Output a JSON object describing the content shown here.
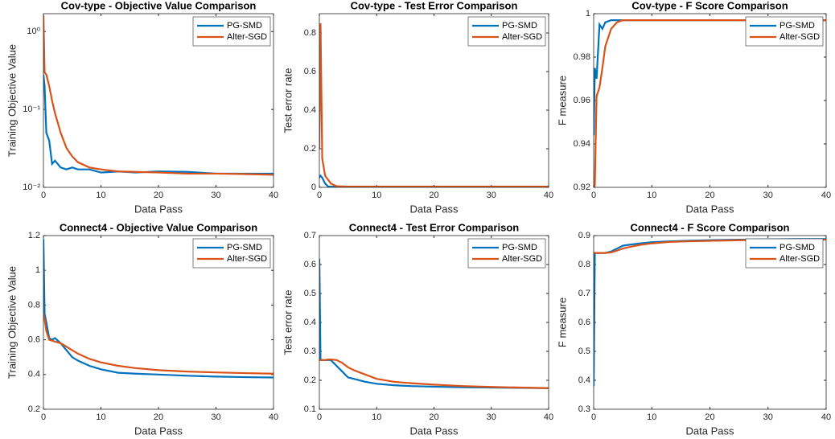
{
  "chart_data": [
    {
      "type": "line",
      "title": "Cov-type - Objective Value Comparison",
      "xlabel": "Data Pass",
      "ylabel": "Training Objective Value",
      "log_y": true,
      "legend": "northeast",
      "x": [
        0,
        0.2,
        0.5,
        1,
        1.5,
        2,
        3,
        4,
        5,
        6,
        8,
        10,
        13,
        16,
        20,
        25,
        30,
        35,
        40
      ],
      "series": [
        {
          "name": "PG-SMD",
          "color": "#0072bd",
          "values": [
            0.28,
            0.2,
            0.05,
            0.04,
            0.02,
            0.022,
            0.018,
            0.017,
            0.018,
            0.017,
            0.017,
            0.0155,
            0.016,
            0.0155,
            0.016,
            0.0158,
            0.015,
            0.015,
            0.015
          ]
        },
        {
          "name": "Alter-SGD",
          "color": "#d95319",
          "values": [
            1.6,
            0.3,
            0.28,
            0.2,
            0.13,
            0.09,
            0.05,
            0.032,
            0.025,
            0.021,
            0.018,
            0.017,
            0.016,
            0.0158,
            0.0155,
            0.015,
            0.015,
            0.0148,
            0.0145
          ]
        }
      ],
      "xlim": [
        0,
        40
      ],
      "xticks": [
        0,
        10,
        20,
        30,
        40
      ],
      "ylim": [
        0.01,
        1.7
      ],
      "yticks": [
        {
          "value": 0.01,
          "label": "10⁻²"
        },
        {
          "value": 0.1,
          "label": "10⁻¹"
        },
        {
          "value": 1,
          "label": "10⁰"
        }
      ]
    },
    {
      "type": "line",
      "title": "Cov-type - Test Error Comparison",
      "xlabel": "Data Pass",
      "ylabel": "Test error rate",
      "legend": "northeast",
      "x": [
        0,
        0.2,
        0.5,
        1,
        1.5,
        2,
        3,
        4,
        5,
        6,
        8,
        10,
        13,
        16,
        20,
        25,
        30,
        35,
        40
      ],
      "series": [
        {
          "name": "PG-SMD",
          "color": "#0072bd",
          "values": [
            0.05,
            0.06,
            0.05,
            0.02,
            0.005,
            0.003,
            0.003,
            0.003,
            0.003,
            0.003,
            0.003,
            0.003,
            0.003,
            0.003,
            0.003,
            0.003,
            0.003,
            0.003,
            0.003
          ]
        },
        {
          "name": "Alter-SGD",
          "color": "#d95319",
          "values": [
            0.2,
            0.85,
            0.15,
            0.06,
            0.04,
            0.02,
            0.006,
            0.005,
            0.004,
            0.004,
            0.004,
            0.004,
            0.004,
            0.004,
            0.004,
            0.004,
            0.004,
            0.004,
            0.004
          ]
        }
      ],
      "xlim": [
        0,
        40
      ],
      "xticks": [
        0,
        10,
        20,
        30,
        40
      ],
      "ylim": [
        0,
        0.9
      ],
      "yticks": [
        0,
        0.2,
        0.4,
        0.6,
        0.8
      ]
    },
    {
      "type": "line",
      "title": "Cov-type - F Score Comparison",
      "xlabel": "Data Pass",
      "ylabel": "F measure",
      "legend": "northeast",
      "x": [
        0,
        0.2,
        0.5,
        1,
        1.5,
        2,
        3,
        4,
        5,
        6,
        8,
        10,
        13,
        16,
        20,
        25,
        30,
        35,
        40
      ],
      "series": [
        {
          "name": "PG-SMD",
          "color": "#0072bd",
          "values": [
            0.944,
            0.975,
            0.97,
            0.995,
            0.993,
            0.996,
            0.997,
            0.997,
            0.997,
            0.997,
            0.997,
            0.997,
            0.997,
            0.997,
            0.997,
            0.997,
            0.997,
            0.997,
            0.997
          ]
        },
        {
          "name": "Alter-SGD",
          "color": "#d95319",
          "values": [
            0.92,
            0.921,
            0.962,
            0.966,
            0.975,
            0.985,
            0.993,
            0.996,
            0.997,
            0.997,
            0.997,
            0.997,
            0.997,
            0.997,
            0.997,
            0.997,
            0.997,
            0.997,
            0.997
          ]
        }
      ],
      "xlim": [
        0,
        40
      ],
      "xticks": [
        0,
        10,
        20,
        30,
        40
      ],
      "ylim": [
        0.92,
        1
      ],
      "yticks": [
        0.92,
        0.94,
        0.96,
        0.98,
        1
      ]
    },
    {
      "type": "line",
      "title": "Connect4 - Objective Value Comparison",
      "xlabel": "Data Pass",
      "ylabel": "Training Objective Value",
      "legend": "northeast",
      "x": [
        0,
        0.2,
        0.5,
        1,
        1.5,
        2,
        3,
        4,
        5,
        6,
        8,
        10,
        13,
        16,
        20,
        25,
        30,
        35,
        40
      ],
      "series": [
        {
          "name": "PG-SMD",
          "color": "#0072bd",
          "values": [
            1.18,
            0.75,
            0.7,
            0.61,
            0.6,
            0.61,
            0.58,
            0.54,
            0.5,
            0.48,
            0.45,
            0.43,
            0.41,
            0.405,
            0.4,
            0.393,
            0.388,
            0.385,
            0.383
          ]
        },
        {
          "name": "Alter-SGD",
          "color": "#d95319",
          "values": [
            0.75,
            0.72,
            0.65,
            0.6,
            0.595,
            0.59,
            0.58,
            0.56,
            0.54,
            0.52,
            0.49,
            0.47,
            0.45,
            0.437,
            0.425,
            0.417,
            0.412,
            0.408,
            0.405
          ]
        }
      ],
      "xlim": [
        0,
        40
      ],
      "xticks": [
        0,
        10,
        20,
        30,
        40
      ],
      "ylim": [
        0.2,
        1.2
      ],
      "yticks": [
        0.2,
        0.4,
        0.6,
        0.8,
        1,
        1.2
      ]
    },
    {
      "type": "line",
      "title": "Connect4 - Test Error Comparison",
      "xlabel": "Data Pass",
      "ylabel": "Test error rate",
      "legend": "northeast",
      "x": [
        0,
        0.2,
        0.5,
        1,
        1.5,
        2,
        3,
        4,
        5,
        6,
        8,
        10,
        13,
        16,
        20,
        25,
        30,
        35,
        40
      ],
      "series": [
        {
          "name": "PG-SMD",
          "color": "#0072bd",
          "values": [
            0.62,
            0.27,
            0.27,
            0.27,
            0.27,
            0.27,
            0.25,
            0.23,
            0.21,
            0.205,
            0.195,
            0.188,
            0.183,
            0.18,
            0.178,
            0.176,
            0.175,
            0.174,
            0.173
          ]
        },
        {
          "name": "Alter-SGD",
          "color": "#d95319",
          "values": [
            0.27,
            0.27,
            0.27,
            0.27,
            0.272,
            0.272,
            0.27,
            0.26,
            0.245,
            0.235,
            0.22,
            0.205,
            0.195,
            0.19,
            0.185,
            0.18,
            0.177,
            0.175,
            0.173
          ]
        }
      ],
      "xlim": [
        0,
        40
      ],
      "xticks": [
        0,
        10,
        20,
        30,
        40
      ],
      "ylim": [
        0.1,
        0.7
      ],
      "yticks": [
        0.1,
        0.2,
        0.3,
        0.4,
        0.5,
        0.6,
        0.7
      ]
    },
    {
      "type": "line",
      "title": "Connect4 - F Score Comparison",
      "xlabel": "Data Pass",
      "ylabel": "F measure",
      "legend": "northeast",
      "x": [
        0,
        0.2,
        0.5,
        1,
        1.5,
        2,
        3,
        4,
        5,
        6,
        8,
        10,
        13,
        16,
        20,
        25,
        30,
        35,
        40
      ],
      "series": [
        {
          "name": "PG-SMD",
          "color": "#0072bd",
          "values": [
            0.38,
            0.84,
            0.84,
            0.84,
            0.84,
            0.84,
            0.845,
            0.855,
            0.865,
            0.868,
            0.873,
            0.877,
            0.88,
            0.882,
            0.884,
            0.886,
            0.887,
            0.888,
            0.888
          ]
        },
        {
          "name": "Alter-SGD",
          "color": "#d95319",
          "values": [
            0.84,
            0.84,
            0.84,
            0.84,
            0.84,
            0.84,
            0.842,
            0.848,
            0.855,
            0.86,
            0.868,
            0.873,
            0.878,
            0.88,
            0.882,
            0.884,
            0.885,
            0.886,
            0.886
          ]
        }
      ],
      "xlim": [
        0,
        40
      ],
      "xticks": [
        0,
        10,
        20,
        30,
        40
      ],
      "ylim": [
        0.3,
        0.9
      ],
      "yticks": [
        0.3,
        0.4,
        0.5,
        0.6,
        0.7,
        0.8,
        0.9
      ]
    }
  ]
}
